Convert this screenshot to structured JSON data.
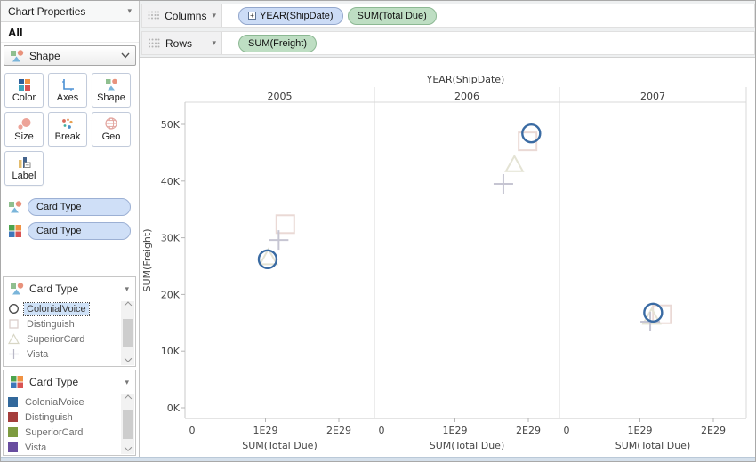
{
  "icons": {
    "dropdown_arrow": "▾",
    "expand_box": "+"
  },
  "sidebar": {
    "header_title": "Chart Properties",
    "section_title": "All",
    "shape_dropdown_label": "Shape",
    "buttons": [
      {
        "label": "Color"
      },
      {
        "label": "Axes"
      },
      {
        "label": "Shape"
      },
      {
        "label": "Size"
      },
      {
        "label": "Break"
      },
      {
        "label": "Geo"
      },
      {
        "label": "Label"
      }
    ],
    "encoding_pills": [
      {
        "icon": "shape-icon",
        "label": "Card Type"
      },
      {
        "icon": "color-icon",
        "label": "Card Type"
      }
    ],
    "shape_legend": {
      "title": "Card Type",
      "items": [
        {
          "label": "ColonialVoice",
          "shape": "circle",
          "selected": true
        },
        {
          "label": "Distinguish",
          "shape": "square",
          "selected": false
        },
        {
          "label": "SuperiorCard",
          "shape": "triangle",
          "selected": false
        },
        {
          "label": "Vista",
          "shape": "plus",
          "selected": false
        }
      ]
    },
    "color_legend": {
      "title": "Card Type",
      "items": [
        {
          "label": "ColonialVoice",
          "color": "#32689b"
        },
        {
          "label": "Distinguish",
          "color": "#a43d3b"
        },
        {
          "label": "SuperiorCard",
          "color": "#7d9b40"
        },
        {
          "label": "Vista",
          "color": "#684d9f"
        }
      ]
    }
  },
  "shelves": {
    "columns": {
      "label": "Columns",
      "pills": [
        {
          "label": "YEAR(ShipDate)",
          "type": "dimension",
          "expandable": true
        },
        {
          "label": "SUM(Total Due)",
          "type": "measure"
        }
      ]
    },
    "rows": {
      "label": "Rows",
      "pills": [
        {
          "label": "SUM(Freight)",
          "type": "measure"
        }
      ]
    }
  },
  "chart_data": {
    "type": "scatter",
    "facet_field": "YEAR(ShipDate)",
    "facets": [
      "2005",
      "2006",
      "2007"
    ],
    "x_axis": {
      "label": "SUM(Total Due)",
      "unit": "1E29",
      "ticks": [
        {
          "label": "0",
          "v": 0
        },
        {
          "label": "1E29",
          "v": 1
        },
        {
          "label": "2E29",
          "v": 2
        }
      ]
    },
    "y_axis": {
      "label": "SUM(Freight)",
      "ticks": [
        {
          "label": "0K",
          "v": 0
        },
        {
          "label": "10K",
          "v": 10000
        },
        {
          "label": "20K",
          "v": 20000
        },
        {
          "label": "30K",
          "v": 30000
        },
        {
          "label": "40K",
          "v": 40000
        },
        {
          "label": "50K",
          "v": 50000
        }
      ]
    },
    "series": [
      {
        "name": "ColonialVoice",
        "shape": "circle",
        "color": "#3a6ba3",
        "stroke_width": 2.4,
        "z": 4,
        "points": [
          {
            "facet": "2005",
            "x": 1.03,
            "y": 26200
          },
          {
            "facet": "2006",
            "x": 2.04,
            "y": 48400
          },
          {
            "facet": "2007",
            "x": 1.18,
            "y": 16800
          }
        ]
      },
      {
        "name": "Distinguish",
        "shape": "square",
        "color": "#ead9d5",
        "stroke_width": 2,
        "z": 1,
        "points": [
          {
            "facet": "2005",
            "x": 1.27,
            "y": 32400
          },
          {
            "facet": "2006",
            "x": 1.99,
            "y": 47000
          },
          {
            "facet": "2007",
            "x": 1.3,
            "y": 16500
          }
        ]
      },
      {
        "name": "SuperiorCard",
        "shape": "triangle",
        "color": "#e4e3d4",
        "stroke_width": 2,
        "z": 2,
        "points": [
          {
            "facet": "2005",
            "x": 1.04,
            "y": 26500
          },
          {
            "facet": "2006",
            "x": 1.81,
            "y": 42900
          },
          {
            "facet": "2007",
            "x": 1.16,
            "y": 16000
          }
        ]
      },
      {
        "name": "Vista",
        "shape": "plus",
        "color": "#c6c5d2",
        "stroke_width": 2,
        "z": 3,
        "points": [
          {
            "facet": "2005",
            "x": 1.18,
            "y": 29600
          },
          {
            "facet": "2006",
            "x": 1.66,
            "y": 39500
          },
          {
            "facet": "2007",
            "x": 1.14,
            "y": 15200
          }
        ]
      }
    ]
  }
}
